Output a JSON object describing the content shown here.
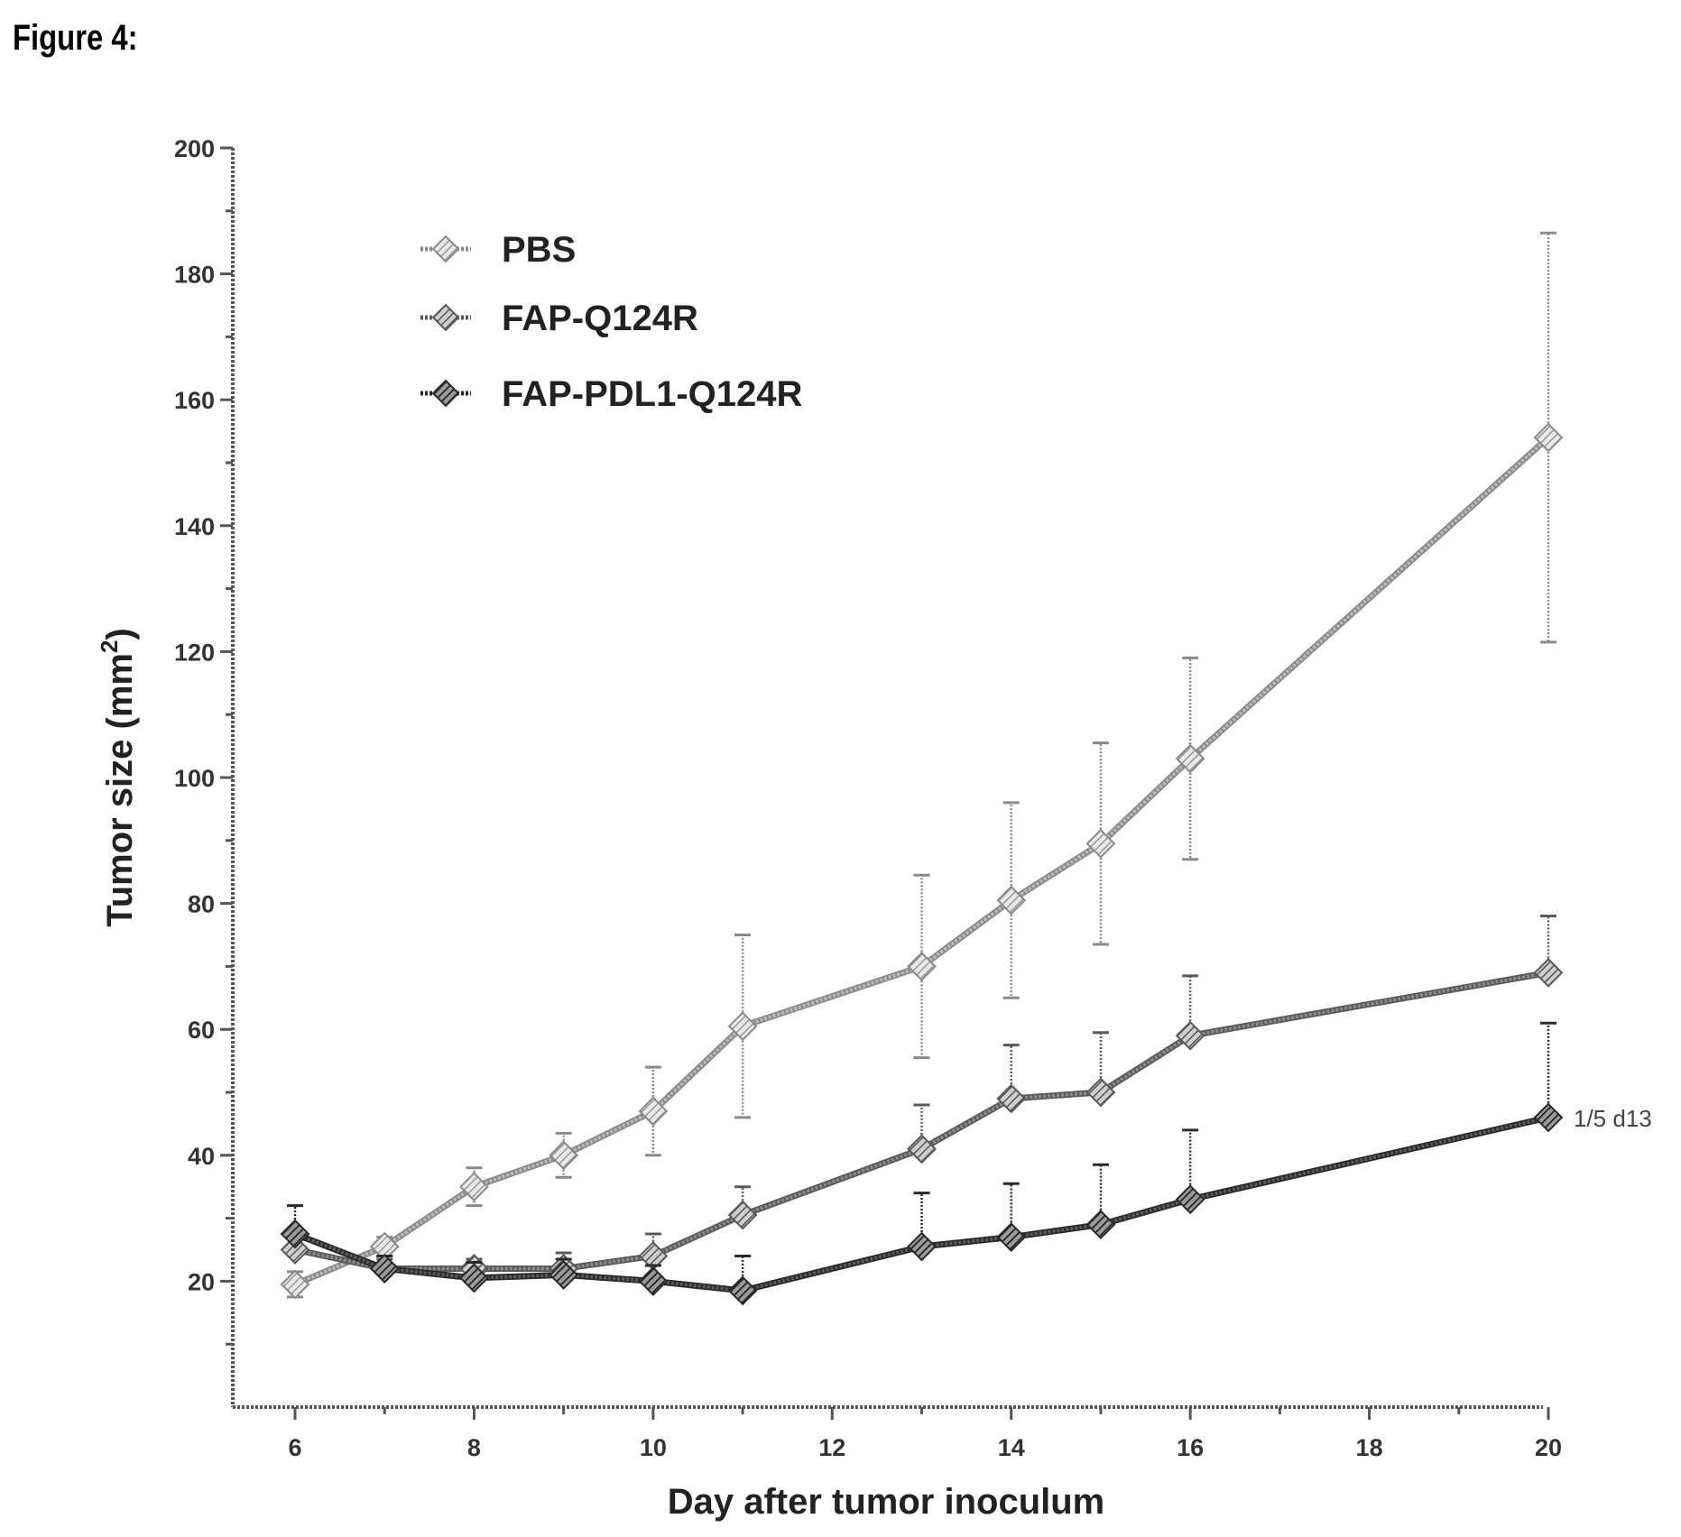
{
  "figure_label": "Figure 4:",
  "chart_data": {
    "type": "line",
    "title": "",
    "xlabel": "Day after tumor inoculum",
    "ylabel": "Tumor size (mm",
    "ylabel_superscript": "2",
    "ylabel_close": ")",
    "xlim": [
      6,
      20
    ],
    "ylim": [
      0,
      200
    ],
    "x_ticks": [
      6,
      8,
      10,
      12,
      14,
      16,
      18,
      20
    ],
    "y_ticks": [
      20,
      40,
      60,
      80,
      100,
      120,
      140,
      160,
      180,
      200
    ],
    "grid": false,
    "legend_position": "top-left",
    "series": [
      {
        "name": "PBS",
        "color": "#a8a8a8",
        "x": [
          6,
          7,
          8,
          9,
          10,
          11,
          13,
          14,
          15,
          16,
          20
        ],
        "y": [
          19.5,
          25.5,
          35,
          40,
          47,
          60.5,
          70,
          80.5,
          89.5,
          103,
          154
        ],
        "err": [
          2,
          1.5,
          3,
          3.5,
          7,
          14.5,
          14.5,
          15.5,
          16,
          16,
          32.5
        ]
      },
      {
        "name": "FAP-Q124R",
        "color": "#7a7a7a",
        "x": [
          6,
          7,
          8,
          9,
          10,
          11,
          13,
          14,
          15,
          16,
          20
        ],
        "y": [
          25,
          22,
          22,
          22,
          24,
          30.5,
          41,
          49,
          50,
          59,
          69
        ],
        "err": [
          3,
          1.5,
          1.5,
          2.5,
          3.5,
          4.5,
          7,
          8.5,
          9.5,
          9.5,
          9
        ]
      },
      {
        "name": "FAP-PDL1-Q124R",
        "color": "#4a4a4a",
        "x": [
          6,
          7,
          8,
          9,
          10,
          11,
          13,
          14,
          15,
          16,
          20
        ],
        "y": [
          27.5,
          22,
          20.5,
          21,
          20,
          18.5,
          25.5,
          27,
          29,
          33,
          46
        ],
        "err": [
          4.5,
          2,
          2.5,
          2.5,
          2.5,
          5.5,
          8.5,
          8.5,
          9.5,
          11,
          15
        ]
      }
    ],
    "annotations": [
      {
        "text": "1/5 d13",
        "x": 20,
        "y": 46
      }
    ]
  }
}
